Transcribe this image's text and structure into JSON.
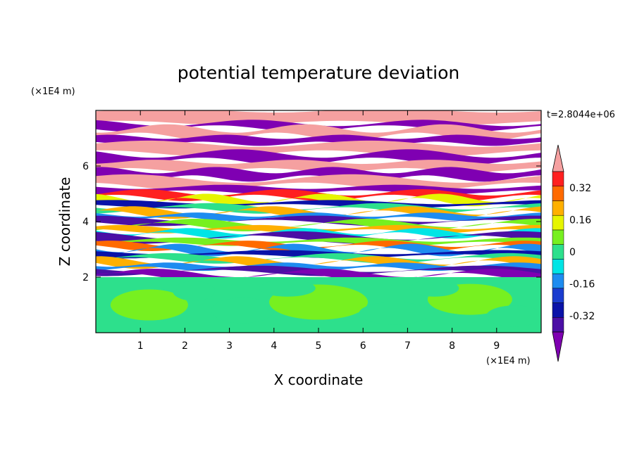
{
  "chart_data": {
    "type": "heatmap",
    "title": "potential temperature deviation",
    "xlabel": "X coordinate",
    "ylabel": "Z coordinate",
    "x_unit": "(×1E4 m)",
    "y_unit": "(×1E4 m)",
    "time_label": "t=2.8044e+06",
    "xlim": [
      0,
      10
    ],
    "ylim": [
      0,
      8
    ],
    "x_ticks": [
      1,
      2,
      3,
      4,
      5,
      6,
      7,
      8,
      9
    ],
    "y_ticks": [
      2,
      4,
      6
    ],
    "colorbar": {
      "levels": [
        -0.48,
        -0.4,
        -0.32,
        -0.24,
        -0.16,
        -0.08,
        0,
        0.08,
        0.16,
        0.24,
        0.32,
        0.4,
        0.48
      ],
      "colors": [
        "#7f00b2",
        "#4b0fa5",
        "#0a12a8",
        "#1a3ccf",
        "#1e8cf0",
        "#00e5e5",
        "#2de08c",
        "#77f020",
        "#e6f500",
        "#ffb000",
        "#ff6a00",
        "#ff2020",
        "#f5a0a0"
      ],
      "tick_labels": [
        "0.32",
        "0.16",
        "0",
        "-0.16",
        "-0.32"
      ],
      "tick_values": [
        0.32,
        0.16,
        0,
        -0.16,
        -0.32
      ],
      "extend": "both"
    },
    "grid": false,
    "legend": "colorbar-right",
    "bands": [
      {
        "z0": 7.55,
        "z1": 8.0,
        "value": 0.5
      },
      {
        "z0": 7.35,
        "z1": 7.55,
        "value": -0.5
      },
      {
        "z0": 7.05,
        "z1": 7.35,
        "value": 0.5
      },
      {
        "z0": 6.8,
        "z1": 7.05,
        "value": -0.5
      },
      {
        "z0": 6.45,
        "z1": 6.8,
        "value": 0.5
      },
      {
        "z0": 6.15,
        "z1": 6.45,
        "value": -0.5
      },
      {
        "z0": 5.85,
        "z1": 6.15,
        "value": 0.5
      },
      {
        "z0": 5.55,
        "z1": 5.85,
        "value": -0.5
      },
      {
        "z0": 5.25,
        "z1": 5.55,
        "value": 0.5
      },
      {
        "z0": 5.05,
        "z1": 5.25,
        "value": -0.45
      },
      {
        "z0": 4.85,
        "z1": 5.05,
        "value": 0.45
      },
      {
        "z0": 4.7,
        "z1": 4.85,
        "value": 0.2
      },
      {
        "z0": 4.55,
        "z1": 4.7,
        "value": -0.3
      },
      {
        "z0": 4.4,
        "z1": 4.55,
        "value": 0.05
      },
      {
        "z0": 4.25,
        "z1": 4.4,
        "value": 0.3
      },
      {
        "z0": 4.1,
        "z1": 4.25,
        "value": -0.1
      },
      {
        "z0": 3.95,
        "z1": 4.1,
        "value": -0.4
      },
      {
        "z0": 3.8,
        "z1": 3.95,
        "value": 0.1
      },
      {
        "z0": 3.65,
        "z1": 3.8,
        "value": 0.25
      },
      {
        "z0": 3.5,
        "z1": 3.65,
        "value": -0.05
      },
      {
        "z0": 3.35,
        "z1": 3.5,
        "value": -0.35
      },
      {
        "z0": 3.2,
        "z1": 3.35,
        "value": 0.15
      },
      {
        "z0": 3.05,
        "z1": 3.2,
        "value": 0.35
      },
      {
        "z0": 2.9,
        "z1": 3.05,
        "value": -0.15
      },
      {
        "z0": 2.75,
        "z1": 2.9,
        "value": -0.3
      },
      {
        "z0": 2.6,
        "z1": 2.75,
        "value": 0.05
      },
      {
        "z0": 2.45,
        "z1": 2.6,
        "value": 0.3
      },
      {
        "z0": 2.3,
        "z1": 2.45,
        "value": -0.1
      },
      {
        "z0": 2.15,
        "z1": 2.3,
        "value": -0.35
      },
      {
        "z0": 2.0,
        "z1": 2.15,
        "value": -0.5
      },
      {
        "z0": 0.0,
        "z1": 2.0,
        "value": 0.06
      }
    ]
  }
}
